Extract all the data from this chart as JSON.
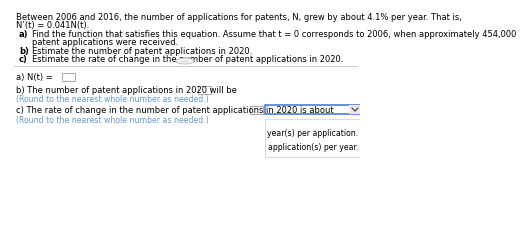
{
  "bg_color": "#ffffff",
  "text_color": "#000000",
  "blue_color": "#6699cc",
  "box_border": "#aaaaaa",
  "dropdown_border": "#4472c4",
  "separator_color": "#cccccc",
  "popup_border": "#dddddd",
  "header_line1": "Between 2006 and 2016, the number of applications for patents, N, grew by about 4.1% per year. That is,",
  "header_line2": "N’(t) = 0.041N(t).",
  "item_a_label": "a)",
  "item_a_line1": "Find the function that satisfies this equation. Assume that t = 0 corresponds to 2006, when approximately 454,000",
  "item_a_line2": "patent applications were received.",
  "item_b_label": "b)",
  "item_b_text": "Estimate the number of patent applications in 2020.",
  "item_c_label": "c)",
  "item_c_text": "Estimate the rate of change in the number of patent applications in 2020.",
  "ans_a_label": "a) N(t) =",
  "ans_b_pre": "b) The number of patent applications in 2020 will be",
  "ans_b_period": ".",
  "round_note": "(Round to the nearest whole number as needed.)",
  "ans_c_pre": "c) The rate of change in the number of patent applications in 2020 is about",
  "dropdown_opt1": "year(s) per application.",
  "dropdown_opt2": "application(s) per year.",
  "fs_main": 6.0,
  "fs_small": 5.6
}
